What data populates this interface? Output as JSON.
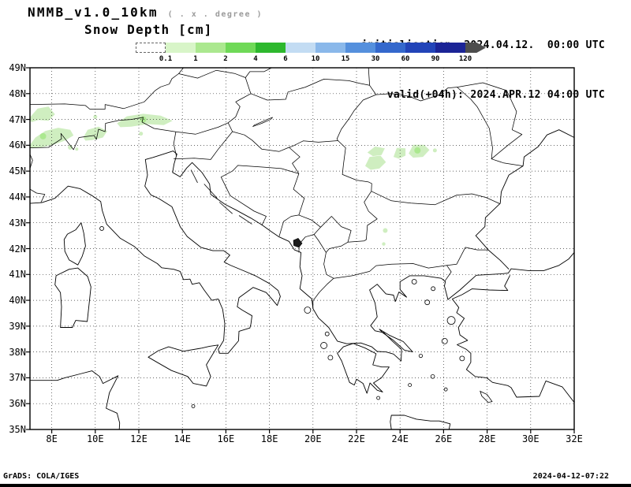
{
  "header": {
    "model": "NMMB_v1.0_10km",
    "model_note": "( . x . degree )",
    "field": "Snow Depth [cm]",
    "init_label": "initialisation: 2024.04.12.  00:00 UTC",
    "valid_label": "valid(+04h): 2024.APR.12 04:00 UTC"
  },
  "colorbar": {
    "levels": [
      "0.1",
      "1",
      "2",
      "4",
      "6",
      "10",
      "15",
      "30",
      "60",
      "90",
      "120"
    ],
    "colors": [
      "#ffffff",
      "#d8f5c8",
      "#abe88f",
      "#6fd957",
      "#2db82d",
      "#c3dcf3",
      "#8ab8ea",
      "#5590dd",
      "#3468cc",
      "#2244b8",
      "#1b2496",
      "#4d4d4d"
    ],
    "snow_fill": "#cfeec0"
  },
  "axes": {
    "lat": [
      "49N",
      "48N",
      "47N",
      "46N",
      "45N",
      "44N",
      "43N",
      "42N",
      "41N",
      "40N",
      "39N",
      "38N",
      "37N",
      "36N",
      "35N"
    ],
    "lon": [
      "8E",
      "10E",
      "12E",
      "14E",
      "16E",
      "18E",
      "20E",
      "22E",
      "24E",
      "26E",
      "28E",
      "30E",
      "32E"
    ]
  },
  "footer": {
    "left": "GrADS: COLA/IGES",
    "right": "2024-04-12-07:22"
  }
}
